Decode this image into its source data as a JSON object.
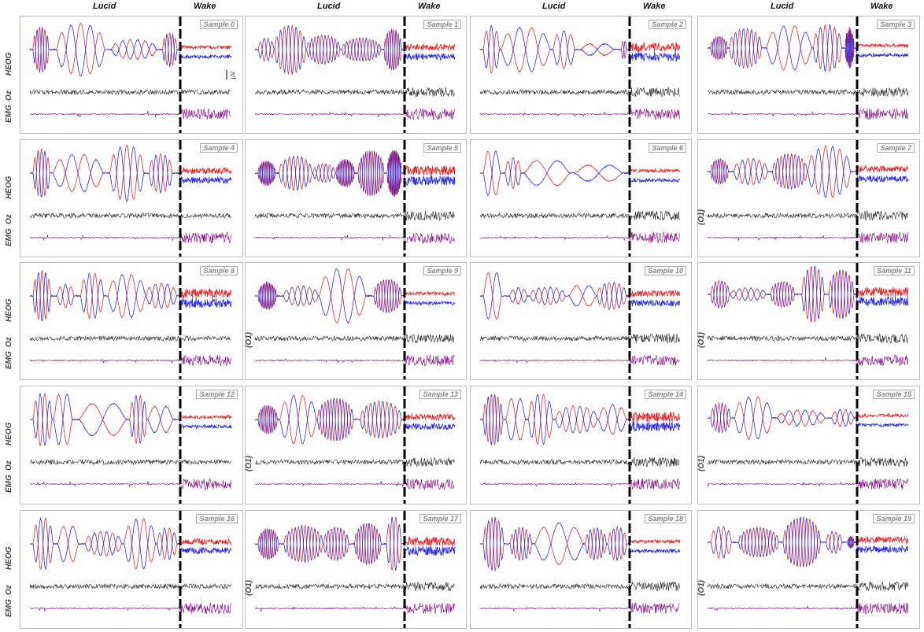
{
  "column_headers": {
    "left": "Lucid",
    "right": "Wake"
  },
  "row_channel_labels": [
    "HEOG",
    "Oz",
    "EMG"
  ],
  "alt_channel_label": "(O1)",
  "unit_label": "µV",
  "colors": {
    "heog_a": "#e8282b",
    "heog_b": "#2a2af0",
    "eeg": "#222222",
    "emg": "#800080",
    "divider": "#000000"
  },
  "chart_data": {
    "type": "line",
    "title": "",
    "series_names": [
      "HEOG",
      "Oz",
      "EMG"
    ],
    "grid": false,
    "panels": [
      {
        "label": "Sample 0",
        "eeg_label": ""
      },
      {
        "label": "Sample 1",
        "eeg_label": ""
      },
      {
        "label": "Sample 2",
        "eeg_label": ""
      },
      {
        "label": "Sample 3",
        "eeg_label": ""
      },
      {
        "label": "Sample 4",
        "eeg_label": ""
      },
      {
        "label": "Sample 5",
        "eeg_label": ""
      },
      {
        "label": "Sample 6",
        "eeg_label": ""
      },
      {
        "label": "Sample 7",
        "eeg_label": "(O1)"
      },
      {
        "label": "Sample 8",
        "eeg_label": ""
      },
      {
        "label": "Sample 9",
        "eeg_label": "(O1)"
      },
      {
        "label": "Sample 10",
        "eeg_label": ""
      },
      {
        "label": "Sample 11",
        "eeg_label": "(O1)"
      },
      {
        "label": "Sample 12",
        "eeg_label": ""
      },
      {
        "label": "Sample 13",
        "eeg_label": "(O1)"
      },
      {
        "label": "Sample 14",
        "eeg_label": ""
      },
      {
        "label": "Sample 15",
        "eeg_label": "(O1)"
      },
      {
        "label": "Sample 16",
        "eeg_label": ""
      },
      {
        "label": "Sample 17",
        "eeg_label": "(O1)"
      },
      {
        "label": "Sample 18",
        "eeg_label": ""
      },
      {
        "label": "Sample 19",
        "eeg_label": "(O1)"
      }
    ]
  }
}
